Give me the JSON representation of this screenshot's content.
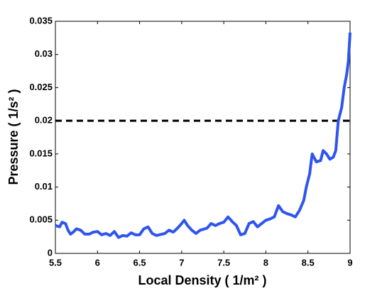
{
  "chart_data": {
    "type": "line",
    "xlabel": "Local Density ( 1/m² )",
    "ylabel": "Pressure ( 1/s² )",
    "xlim": [
      5.5,
      9
    ],
    "xticks": [
      5.5,
      6,
      6.5,
      7,
      7.5,
      8,
      8.5,
      9
    ],
    "ylim": [
      0,
      0.035
    ],
    "yticks": [
      0,
      0.005,
      0.01,
      0.015,
      0.02,
      0.025,
      0.03,
      0.035
    ],
    "grid": false,
    "reference_line": {
      "value": 0.02,
      "color": "#000000",
      "style": "dashed"
    },
    "series": [
      {
        "color": "#2f55ee",
        "x": [
          5.5,
          5.55,
          5.58,
          5.62,
          5.65,
          5.68,
          5.72,
          5.75,
          5.8,
          5.85,
          5.9,
          5.95,
          6.0,
          6.05,
          6.1,
          6.15,
          6.2,
          6.25,
          6.3,
          6.35,
          6.4,
          6.45,
          6.5,
          6.55,
          6.6,
          6.65,
          6.7,
          6.8,
          6.85,
          6.9,
          6.95,
          7.0,
          7.03,
          7.07,
          7.12,
          7.17,
          7.22,
          7.3,
          7.35,
          7.4,
          7.45,
          7.5,
          7.55,
          7.6,
          7.65,
          7.7,
          7.75,
          7.8,
          7.85,
          7.9,
          7.95,
          8.0,
          8.05,
          8.1,
          8.15,
          8.2,
          8.25,
          8.3,
          8.35,
          8.4,
          8.45,
          8.48,
          8.52,
          8.55,
          8.6,
          8.65,
          8.68,
          8.72,
          8.76,
          8.8,
          8.83,
          8.86,
          8.9,
          8.93,
          8.96,
          8.98,
          9.0
        ],
        "values": [
          0.0042,
          0.004,
          0.0047,
          0.0045,
          0.0035,
          0.0029,
          0.0033,
          0.0037,
          0.0035,
          0.0029,
          0.0029,
          0.0032,
          0.0033,
          0.0028,
          0.003,
          0.0027,
          0.0033,
          0.0024,
          0.0027,
          0.0026,
          0.0031,
          0.0028,
          0.0028,
          0.0037,
          0.004,
          0.003,
          0.0027,
          0.003,
          0.0035,
          0.0032,
          0.0038,
          0.0045,
          0.005,
          0.0042,
          0.0035,
          0.003,
          0.0035,
          0.0038,
          0.0045,
          0.0042,
          0.0045,
          0.0047,
          0.0055,
          0.0048,
          0.0042,
          0.0028,
          0.003,
          0.0045,
          0.0048,
          0.004,
          0.0045,
          0.005,
          0.0052,
          0.0055,
          0.0072,
          0.0063,
          0.006,
          0.0058,
          0.0055,
          0.0065,
          0.008,
          0.01,
          0.012,
          0.015,
          0.0138,
          0.014,
          0.0155,
          0.015,
          0.0142,
          0.0145,
          0.0155,
          0.02,
          0.022,
          0.025,
          0.027,
          0.029,
          0.0333
        ]
      }
    ]
  }
}
